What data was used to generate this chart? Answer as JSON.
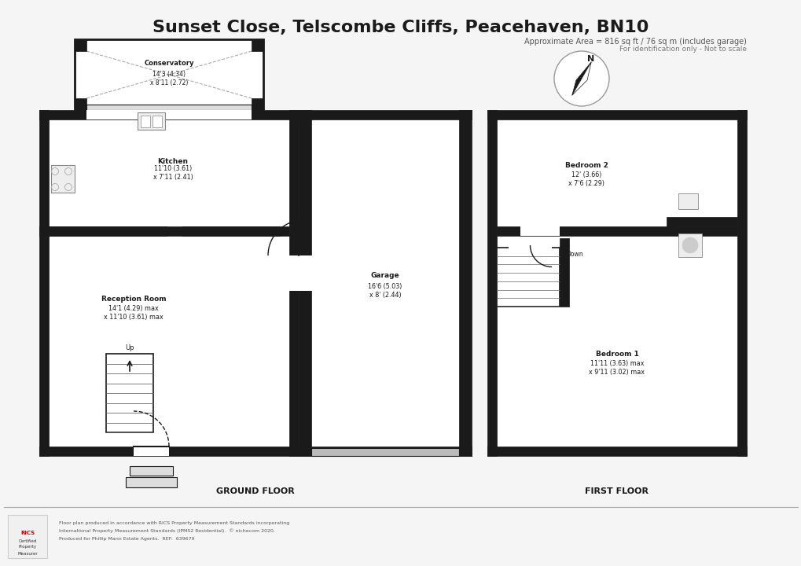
{
  "title": "Sunset Close, Telscombe Cliffs, Peacehaven, BN10",
  "subtitle": "Approximate Area = 816 sq ft / 76 sq m (includes garage)",
  "subtitle2": "For identification only - Not to scale",
  "footer_line1": "Floor plan produced in accordance with RICS Property Measurement Standards incorporating",
  "footer_line2": "International Property Measurement Standards (IPMS2 Residential).  © nichecom 2020.",
  "footer_line3": "Produced for Phillip Mann Estate Agents.  REF:  639679",
  "ground_floor_label": "GROUND FLOOR",
  "first_floor_label": "FIRST FLOOR",
  "bg_color": "#f5f5f5",
  "wall_color": "#1a1a1a",
  "wall_lw": 6,
  "thin_lw": 1.5,
  "rooms": {
    "conservatory": {
      "label": "Conservatory",
      "dim": "14'3 (4.34)\nx 8'11 (2.72)"
    },
    "kitchen": {
      "label": "Kitchen",
      "dim": "11'10 (3.61)\nx 7'11 (2.41)"
    },
    "reception": {
      "label": "Reception Room",
      "dim": "14'1 (4.29) max\nx 11'10 (3.61) max"
    },
    "garage": {
      "label": "Garage",
      "dim": "16'6 (5.03)\nx 8' (2.44)"
    },
    "bedroom2": {
      "label": "Bedroom 2",
      "dim": "12' (3.66)\nx 7'6 (2.29)"
    },
    "bedroom1": {
      "label": "Bedroom 1",
      "dim": "11'11 (3.63) max\nx 9'11 (3.02) max"
    }
  }
}
